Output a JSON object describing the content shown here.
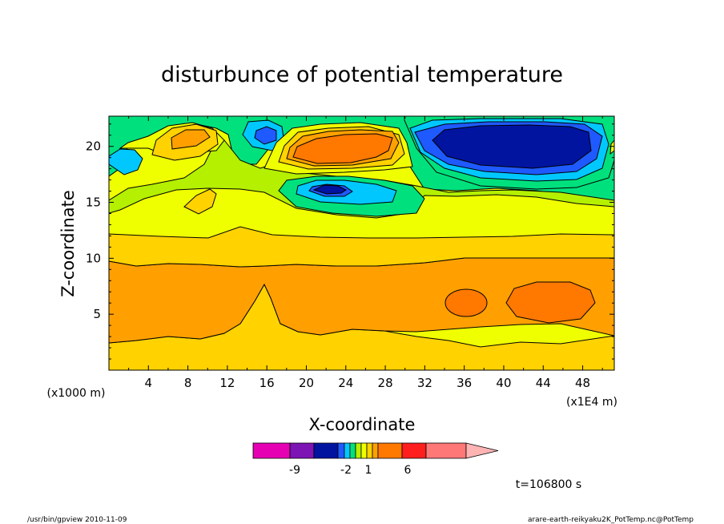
{
  "chart_data": {
    "type": "heatmap",
    "title": "disturbunce of potential temperature",
    "xlabel": "X-coordinate",
    "ylabel": "Z-coordinate",
    "x_units_note": "(x1E4 m)",
    "y_units_note": "(x1000 m)",
    "x_ticks": [
      4,
      8,
      12,
      16,
      20,
      24,
      28,
      32,
      36,
      40,
      44,
      48
    ],
    "y_ticks": [
      5,
      10,
      15,
      20
    ],
    "xlim": [
      0,
      51.2
    ],
    "ylim": [
      0,
      22.7
    ],
    "colorbar": {
      "labels": [
        {
          "text": "-9",
          "value": -9
        },
        {
          "text": "-2",
          "value": -2
        },
        {
          "text": "1",
          "value": 1
        },
        {
          "text": "6",
          "value": 6
        }
      ],
      "colors": [
        "#e600b4",
        "#7d14b4",
        "#0014a0",
        "#1e5aff",
        "#00c8ff",
        "#00e17d",
        "#b4f000",
        "#f0ff00",
        "#ffd200",
        "#ffa000",
        "#ff7800",
        "#ff1e1e",
        "#ff7878",
        "#ffb4b4"
      ]
    },
    "regions": [
      {
        "name": "positive anomaly near x=23, z=20",
        "x": 23.5,
        "z": 19.8,
        "color": "#ff7800"
      },
      {
        "name": "strong negative anomaly near x=42, z=20",
        "x": 42,
        "z": 20.2,
        "color": "#0014a0"
      },
      {
        "name": "negative anomaly near x=23.5, z=16.3",
        "x": 23.5,
        "z": 16.3,
        "color": "#0014a0"
      },
      {
        "name": "positive anomaly near x=38, z=6",
        "x": 38,
        "z": 6.2,
        "color": "#ff7800"
      },
      {
        "name": "positive anomaly near x=45, z=6.1",
        "x": 45.5,
        "z": 6.1,
        "color": "#ff7800"
      }
    ]
  },
  "annotations": {
    "time": "t=106800 s",
    "footer_left": "/usr/bin/gpview  2010-11-09",
    "footer_right": "arare-earth-reikyaku2K_PotTemp.nc@PotTemp"
  }
}
